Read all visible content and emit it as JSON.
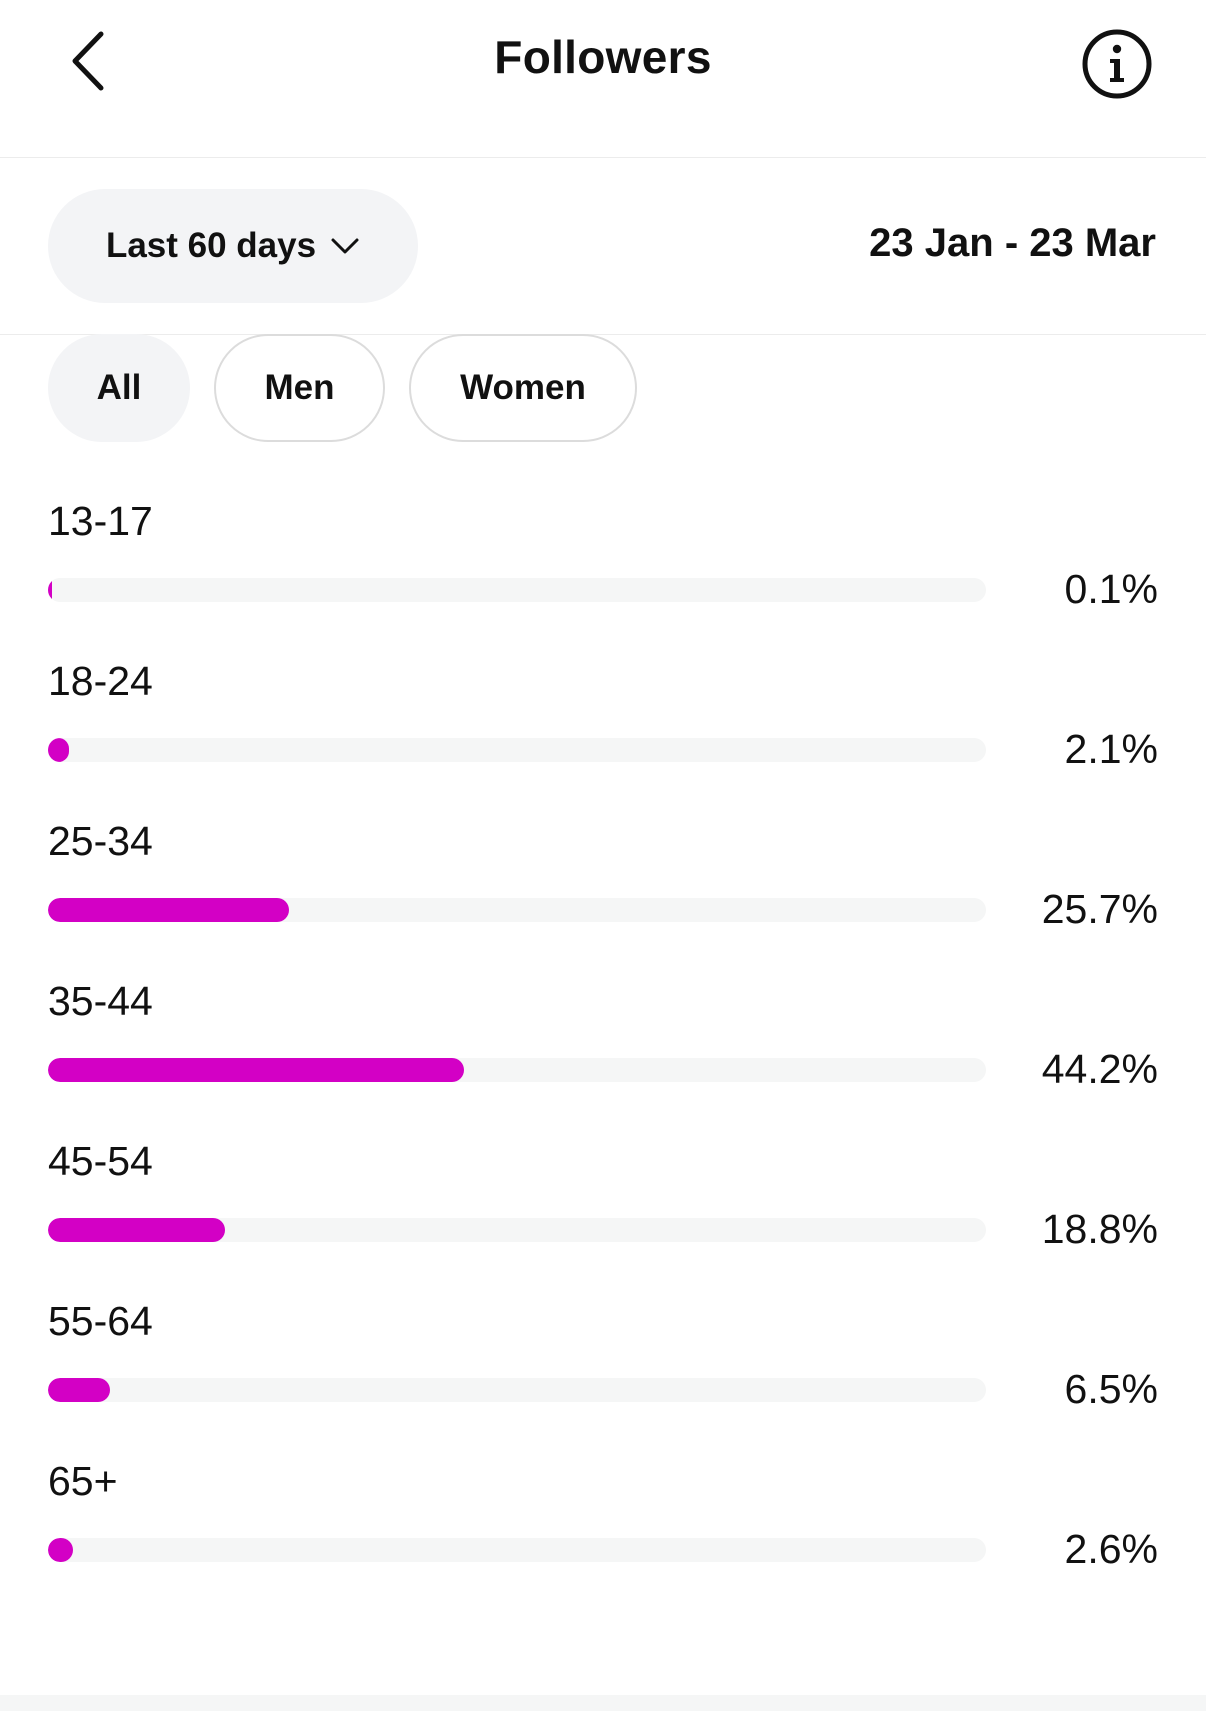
{
  "header": {
    "title": "Followers",
    "back_icon": "chevron-left-icon",
    "info_icon": "info-circle-icon"
  },
  "range": {
    "selected": "Last 60 days",
    "dropdown_icon": "chevron-down-icon",
    "date_range": "23 Jan - 23 Mar"
  },
  "filters": [
    {
      "label": "All",
      "active": true
    },
    {
      "label": "Men",
      "active": false
    },
    {
      "label": "Women",
      "active": false
    }
  ],
  "accent_color": "#d300c5",
  "chart_data": {
    "type": "bar",
    "categories": [
      "13-17",
      "18-24",
      "25-34",
      "35-44",
      "45-54",
      "55-64",
      "65+"
    ],
    "values": [
      0.1,
      2.1,
      25.7,
      44.2,
      18.8,
      6.5,
      2.6
    ],
    "value_labels": [
      "0.1%",
      "2.1%",
      "25.7%",
      "44.2%",
      "18.8%",
      "6.5%",
      "2.6%"
    ],
    "bar_fill_fraction": [
      0.002,
      0.022,
      0.257,
      0.443,
      0.189,
      0.066,
      0.027
    ],
    "orientation": "horizontal"
  }
}
